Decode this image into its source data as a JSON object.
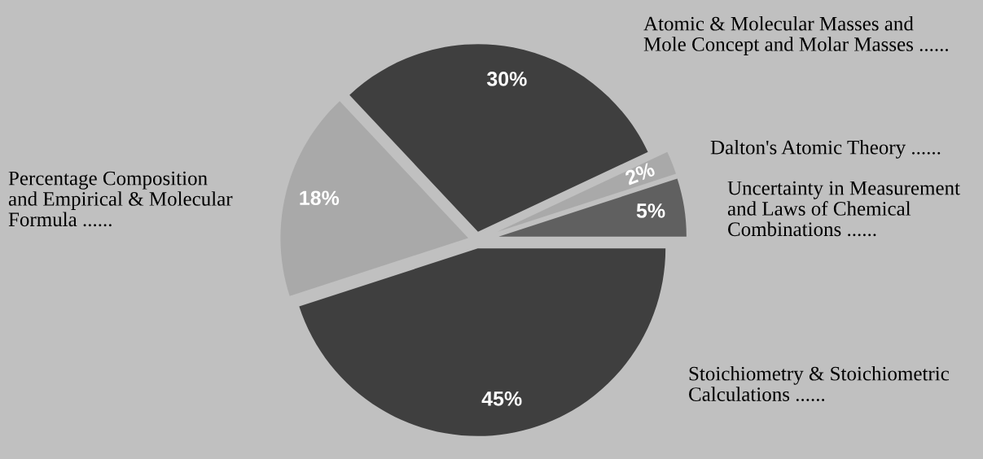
{
  "chart_data": {
    "type": "pie",
    "categories": [
      "Uncertainty in Measurement\nand Laws of Chemical\nCombinations ......",
      "Dalton's Atomic Theory ......",
      "Atomic & Molecular Masses and\nMole Concept and Molar Masses ......",
      "Percentage Composition\nand Empirical & Molecular\nFormula ......",
      "Stoichiometry & Stoichiometric\nCalculations ......"
    ],
    "values": [
      5,
      2,
      30,
      18,
      45
    ],
    "value_labels": [
      "5%",
      "2%",
      "30%",
      "18%",
      "45%"
    ],
    "colors": [
      "#606060",
      "#a9a9a9",
      "#3f3f3f",
      "#a9a9a9",
      "#3f3f3f"
    ],
    "legend": false
  }
}
